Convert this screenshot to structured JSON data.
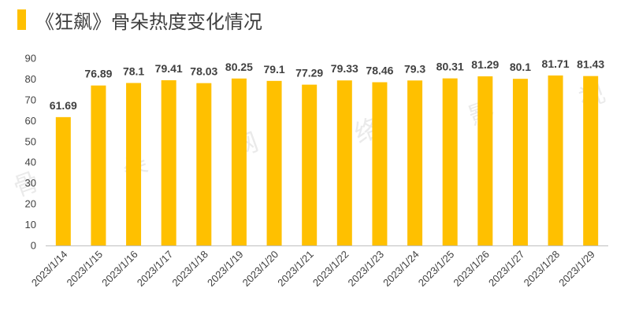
{
  "chart_data": {
    "type": "bar",
    "title": "《狂飙》骨朵热度变化情况",
    "categories": [
      "2023/1/14",
      "2023/1/15",
      "2023/1/16",
      "2023/1/17",
      "2023/1/18",
      "2023/1/19",
      "2023/1/20",
      "2023/1/21",
      "2023/1/22",
      "2023/1/23",
      "2023/1/24",
      "2023/1/25",
      "2023/1/26",
      "2023/1/27",
      "2023/1/28",
      "2023/1/29"
    ],
    "values": [
      61.69,
      76.89,
      78.1,
      79.41,
      78.03,
      80.25,
      79.1,
      77.29,
      79.33,
      78.46,
      79.3,
      80.31,
      81.29,
      80.1,
      81.71,
      81.43
    ],
    "value_labels": [
      "61.69",
      "76.89",
      "78.1",
      "79.41",
      "78.03",
      "80.25",
      "79.1",
      "77.29",
      "79.33",
      "78.46",
      "79.3",
      "80.31",
      "81.29",
      "80.1",
      "81.71",
      "81.43"
    ],
    "y_ticks": [
      "0",
      "10",
      "20",
      "30",
      "40",
      "50",
      "60",
      "70",
      "80",
      "90"
    ],
    "ylim": [
      0,
      90
    ],
    "xlabel": "",
    "ylabel": "",
    "grid": false,
    "legend": "none",
    "bar_color": "#ffc000",
    "watermark": [
      "骨",
      "朵",
      "网",
      "络",
      "影",
      "视"
    ]
  }
}
